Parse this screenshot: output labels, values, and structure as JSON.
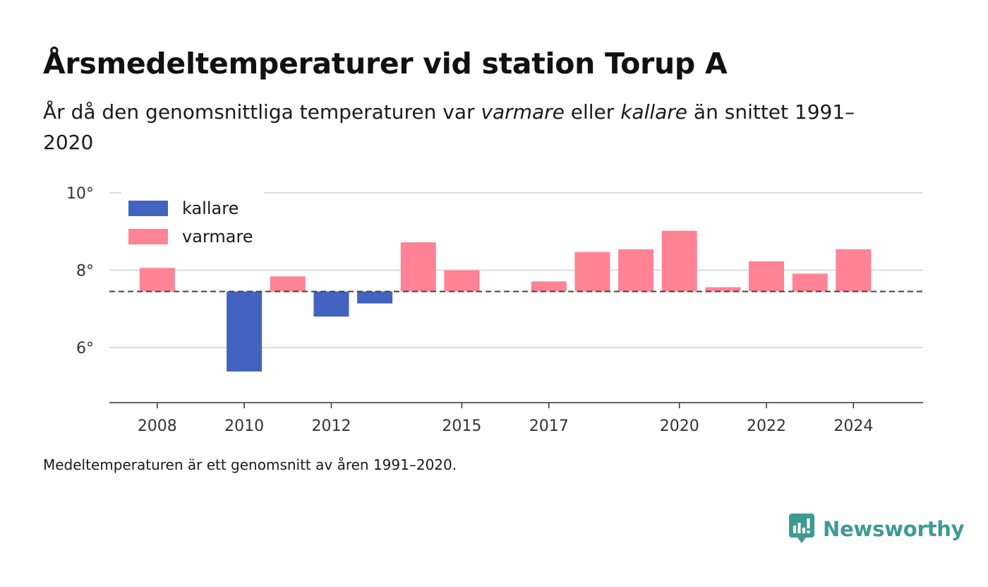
{
  "header": {
    "title": "Årsmedeltemperaturer vid station Torup A",
    "subtitle_part1": "År då den genomsnittliga temperaturen var ",
    "subtitle_warm": "varmare",
    "subtitle_part2": " eller ",
    "subtitle_cold": "kallare",
    "subtitle_part3": " än snittet 1991–2020"
  },
  "footer": {
    "note": "Medeltemperaturen är ett genomsnitt av åren 1991–2020.",
    "brand": "Newsworthy",
    "brand_icon": "newsworthy-logo-icon"
  },
  "chart_data": {
    "type": "bar",
    "baseline": 7.45,
    "ylim": [
      4.6,
      10
    ],
    "yticks": [
      {
        "value": 10,
        "label": "10°"
      },
      {
        "value": 8,
        "label": "8°"
      },
      {
        "value": 6,
        "label": "6°"
      }
    ],
    "xlim": [
      2006.9,
      2025.6
    ],
    "xticks": [
      {
        "value": 2008,
        "label": "2008"
      },
      {
        "value": 2010,
        "label": "2010"
      },
      {
        "value": 2012,
        "label": "2012"
      },
      {
        "value": 2015,
        "label": "2015"
      },
      {
        "value": 2017,
        "label": "2017"
      },
      {
        "value": 2020,
        "label": "2020"
      },
      {
        "value": 2022,
        "label": "2022"
      },
      {
        "value": 2024,
        "label": "2024"
      }
    ],
    "legend": {
      "placement": "top-left",
      "items": [
        {
          "label": "kallare",
          "color": "#4264c0"
        },
        {
          "label": "varmare",
          "color": "#ff8395"
        }
      ]
    },
    "colors": {
      "warmer": "#ff8395",
      "colder": "#4264c0"
    },
    "bars": [
      {
        "year": 2008,
        "value": 8.06
      },
      {
        "year": 2010,
        "value": 5.38
      },
      {
        "year": 2011,
        "value": 7.84
      },
      {
        "year": 2012,
        "value": 6.8
      },
      {
        "year": 2013,
        "value": 7.14
      },
      {
        "year": 2014,
        "value": 8.72
      },
      {
        "year": 2015,
        "value": 8.0
      },
      {
        "year": 2017,
        "value": 7.71
      },
      {
        "year": 2018,
        "value": 8.47
      },
      {
        "year": 2019,
        "value": 8.54
      },
      {
        "year": 2020,
        "value": 9.02
      },
      {
        "year": 2021,
        "value": 7.56
      },
      {
        "year": 2022,
        "value": 8.23
      },
      {
        "year": 2023,
        "value": 7.91
      },
      {
        "year": 2024,
        "value": 8.54
      }
    ]
  }
}
